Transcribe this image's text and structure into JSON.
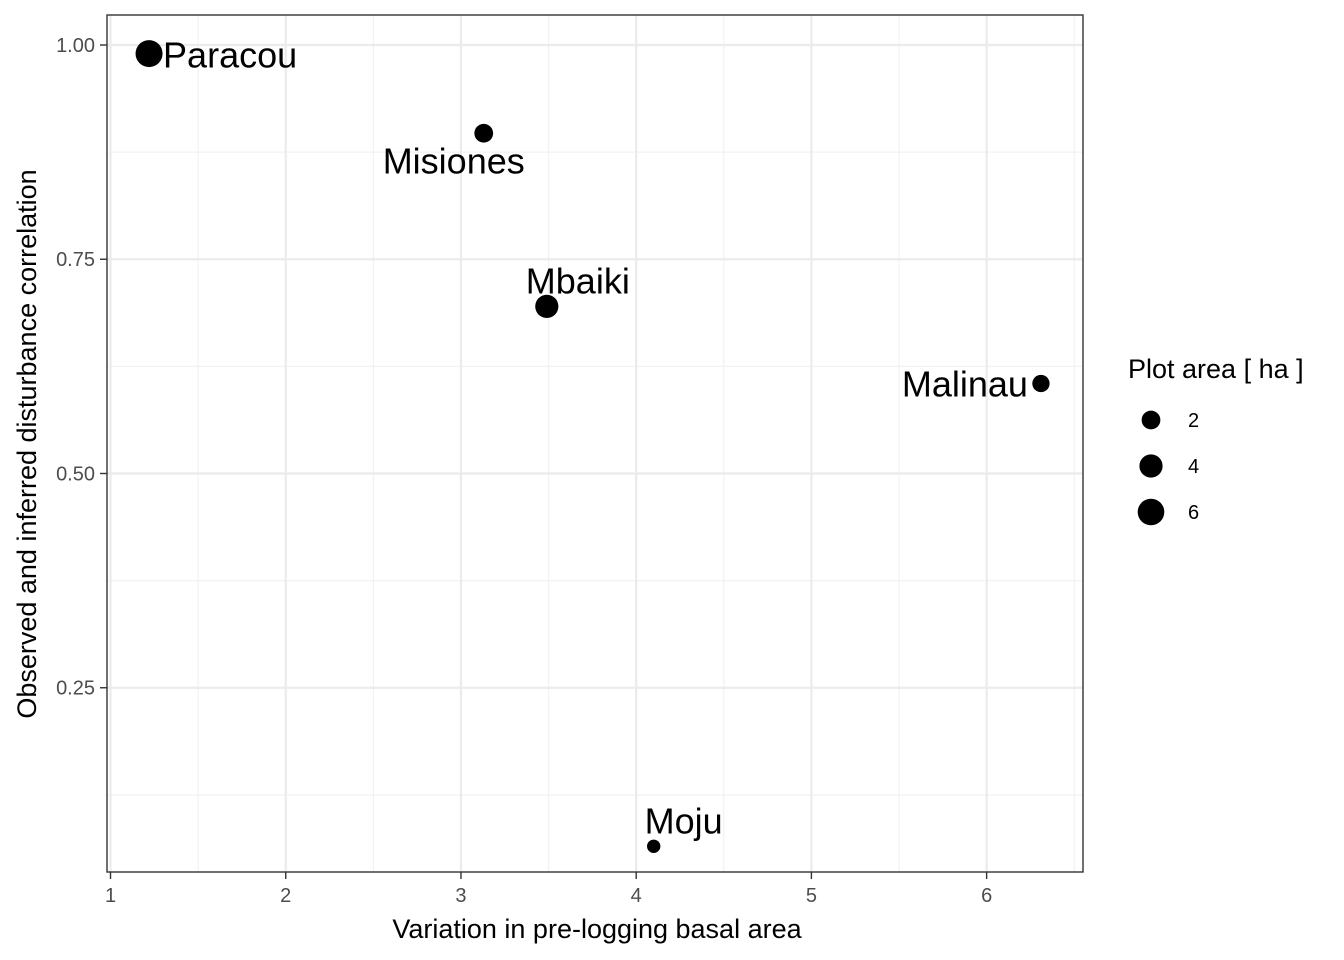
{
  "chart_data": {
    "type": "scatter",
    "title": "",
    "xlabel": "Variation in pre-logging basal area",
    "ylabel": "Observed and inferred disturbance correlation",
    "xlim": [
      0.98,
      6.55
    ],
    "ylim": [
      0.035,
      1.035
    ],
    "x_ticks": [
      1,
      2,
      3,
      4,
      5,
      6
    ],
    "x_tick_labels": [
      "1",
      "2",
      "3",
      "4",
      "5",
      "6"
    ],
    "y_ticks": [
      0.25,
      0.5,
      0.75,
      1.0
    ],
    "y_tick_labels": [
      "0.25",
      "0.50",
      "0.75",
      "1.00"
    ],
    "grid": true,
    "points": [
      {
        "label": "Paracou",
        "x": 1.22,
        "y": 0.99,
        "size": 6.25
      },
      {
        "label": "Misiones",
        "x": 3.13,
        "y": 0.897,
        "size": 2.0
      },
      {
        "label": "Mbaiki",
        "x": 3.49,
        "y": 0.695,
        "size": 4.0
      },
      {
        "label": "Malinau",
        "x": 6.31,
        "y": 0.605,
        "size": 1.5
      },
      {
        "label": "Moju",
        "x": 4.1,
        "y": 0.065,
        "size": 0.5
      }
    ],
    "legend": {
      "title": "Plot area [ ha ]",
      "position": "right",
      "items": [
        {
          "label": "2",
          "value": 2
        },
        {
          "label": "4",
          "value": 4
        },
        {
          "label": "6",
          "value": 6
        }
      ]
    }
  }
}
